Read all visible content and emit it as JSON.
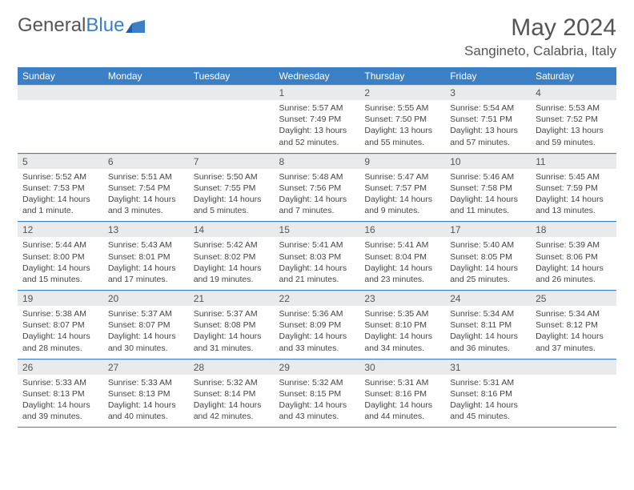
{
  "logo": {
    "text1": "General",
    "text2": "Blue"
  },
  "title": "May 2024",
  "location": "Sangineto, Calabria, Italy",
  "colors": {
    "header_bg": "#3b7fc4",
    "header_text": "#ffffff",
    "daynum_bg": "#e9eaeb",
    "text": "#555555",
    "border": "#3b7fc4"
  },
  "fonts": {
    "title_size": 30,
    "location_size": 17,
    "weekday_size": 12,
    "daynum_size": 12,
    "info_size": 10.5
  },
  "weekdays": [
    "Sunday",
    "Monday",
    "Tuesday",
    "Wednesday",
    "Thursday",
    "Friday",
    "Saturday"
  ],
  "weeks": [
    [
      {
        "n": "",
        "lines": []
      },
      {
        "n": "",
        "lines": []
      },
      {
        "n": "",
        "lines": []
      },
      {
        "n": "1",
        "lines": [
          "Sunrise: 5:57 AM",
          "Sunset: 7:49 PM",
          "Daylight: 13 hours",
          "and 52 minutes."
        ]
      },
      {
        "n": "2",
        "lines": [
          "Sunrise: 5:55 AM",
          "Sunset: 7:50 PM",
          "Daylight: 13 hours",
          "and 55 minutes."
        ]
      },
      {
        "n": "3",
        "lines": [
          "Sunrise: 5:54 AM",
          "Sunset: 7:51 PM",
          "Daylight: 13 hours",
          "and 57 minutes."
        ]
      },
      {
        "n": "4",
        "lines": [
          "Sunrise: 5:53 AM",
          "Sunset: 7:52 PM",
          "Daylight: 13 hours",
          "and 59 minutes."
        ]
      }
    ],
    [
      {
        "n": "5",
        "lines": [
          "Sunrise: 5:52 AM",
          "Sunset: 7:53 PM",
          "Daylight: 14 hours",
          "and 1 minute."
        ]
      },
      {
        "n": "6",
        "lines": [
          "Sunrise: 5:51 AM",
          "Sunset: 7:54 PM",
          "Daylight: 14 hours",
          "and 3 minutes."
        ]
      },
      {
        "n": "7",
        "lines": [
          "Sunrise: 5:50 AM",
          "Sunset: 7:55 PM",
          "Daylight: 14 hours",
          "and 5 minutes."
        ]
      },
      {
        "n": "8",
        "lines": [
          "Sunrise: 5:48 AM",
          "Sunset: 7:56 PM",
          "Daylight: 14 hours",
          "and 7 minutes."
        ]
      },
      {
        "n": "9",
        "lines": [
          "Sunrise: 5:47 AM",
          "Sunset: 7:57 PM",
          "Daylight: 14 hours",
          "and 9 minutes."
        ]
      },
      {
        "n": "10",
        "lines": [
          "Sunrise: 5:46 AM",
          "Sunset: 7:58 PM",
          "Daylight: 14 hours",
          "and 11 minutes."
        ]
      },
      {
        "n": "11",
        "lines": [
          "Sunrise: 5:45 AM",
          "Sunset: 7:59 PM",
          "Daylight: 14 hours",
          "and 13 minutes."
        ]
      }
    ],
    [
      {
        "n": "12",
        "lines": [
          "Sunrise: 5:44 AM",
          "Sunset: 8:00 PM",
          "Daylight: 14 hours",
          "and 15 minutes."
        ]
      },
      {
        "n": "13",
        "lines": [
          "Sunrise: 5:43 AM",
          "Sunset: 8:01 PM",
          "Daylight: 14 hours",
          "and 17 minutes."
        ]
      },
      {
        "n": "14",
        "lines": [
          "Sunrise: 5:42 AM",
          "Sunset: 8:02 PM",
          "Daylight: 14 hours",
          "and 19 minutes."
        ]
      },
      {
        "n": "15",
        "lines": [
          "Sunrise: 5:41 AM",
          "Sunset: 8:03 PM",
          "Daylight: 14 hours",
          "and 21 minutes."
        ]
      },
      {
        "n": "16",
        "lines": [
          "Sunrise: 5:41 AM",
          "Sunset: 8:04 PM",
          "Daylight: 14 hours",
          "and 23 minutes."
        ]
      },
      {
        "n": "17",
        "lines": [
          "Sunrise: 5:40 AM",
          "Sunset: 8:05 PM",
          "Daylight: 14 hours",
          "and 25 minutes."
        ]
      },
      {
        "n": "18",
        "lines": [
          "Sunrise: 5:39 AM",
          "Sunset: 8:06 PM",
          "Daylight: 14 hours",
          "and 26 minutes."
        ]
      }
    ],
    [
      {
        "n": "19",
        "lines": [
          "Sunrise: 5:38 AM",
          "Sunset: 8:07 PM",
          "Daylight: 14 hours",
          "and 28 minutes."
        ]
      },
      {
        "n": "20",
        "lines": [
          "Sunrise: 5:37 AM",
          "Sunset: 8:07 PM",
          "Daylight: 14 hours",
          "and 30 minutes."
        ]
      },
      {
        "n": "21",
        "lines": [
          "Sunrise: 5:37 AM",
          "Sunset: 8:08 PM",
          "Daylight: 14 hours",
          "and 31 minutes."
        ]
      },
      {
        "n": "22",
        "lines": [
          "Sunrise: 5:36 AM",
          "Sunset: 8:09 PM",
          "Daylight: 14 hours",
          "and 33 minutes."
        ]
      },
      {
        "n": "23",
        "lines": [
          "Sunrise: 5:35 AM",
          "Sunset: 8:10 PM",
          "Daylight: 14 hours",
          "and 34 minutes."
        ]
      },
      {
        "n": "24",
        "lines": [
          "Sunrise: 5:34 AM",
          "Sunset: 8:11 PM",
          "Daylight: 14 hours",
          "and 36 minutes."
        ]
      },
      {
        "n": "25",
        "lines": [
          "Sunrise: 5:34 AM",
          "Sunset: 8:12 PM",
          "Daylight: 14 hours",
          "and 37 minutes."
        ]
      }
    ],
    [
      {
        "n": "26",
        "lines": [
          "Sunrise: 5:33 AM",
          "Sunset: 8:13 PM",
          "Daylight: 14 hours",
          "and 39 minutes."
        ]
      },
      {
        "n": "27",
        "lines": [
          "Sunrise: 5:33 AM",
          "Sunset: 8:13 PM",
          "Daylight: 14 hours",
          "and 40 minutes."
        ]
      },
      {
        "n": "28",
        "lines": [
          "Sunrise: 5:32 AM",
          "Sunset: 8:14 PM",
          "Daylight: 14 hours",
          "and 42 minutes."
        ]
      },
      {
        "n": "29",
        "lines": [
          "Sunrise: 5:32 AM",
          "Sunset: 8:15 PM",
          "Daylight: 14 hours",
          "and 43 minutes."
        ]
      },
      {
        "n": "30",
        "lines": [
          "Sunrise: 5:31 AM",
          "Sunset: 8:16 PM",
          "Daylight: 14 hours",
          "and 44 minutes."
        ]
      },
      {
        "n": "31",
        "lines": [
          "Sunrise: 5:31 AM",
          "Sunset: 8:16 PM",
          "Daylight: 14 hours",
          "and 45 minutes."
        ]
      },
      {
        "n": "",
        "lines": []
      }
    ]
  ]
}
